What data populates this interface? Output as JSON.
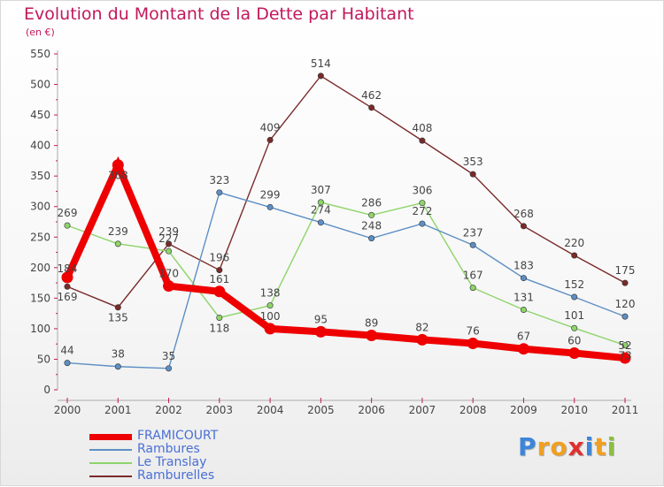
{
  "title": "Evolution du Montant de la Dette par Habitant",
  "subtitle": "(en €)",
  "chart_data": {
    "type": "line",
    "title": "Evolution du Montant de la Dette par Habitant",
    "subtitle": "(en €)",
    "x": [
      "2000",
      "2001",
      "2002",
      "2003",
      "2004",
      "2005",
      "2006",
      "2007",
      "2008",
      "2009",
      "2010",
      "2011"
    ],
    "ylim": [
      0,
      550
    ],
    "yticks": [
      0,
      50,
      100,
      150,
      200,
      250,
      300,
      350,
      400,
      450,
      500,
      550
    ],
    "grid": false,
    "legend_position": "bottom-left",
    "series": [
      {
        "name": "FRAMICOURT",
        "color": "#ee0000",
        "values": [
          184,
          368,
          170,
          161,
          100,
          95,
          89,
          82,
          76,
          67,
          60,
          52
        ]
      },
      {
        "name": "Rambures",
        "color": "#5d8fc4",
        "values": [
          44,
          38,
          35,
          323,
          299,
          274,
          248,
          272,
          237,
          183,
          152,
          120
        ]
      },
      {
        "name": "Le Translay",
        "color": "#8ed46a",
        "values": [
          269,
          239,
          227,
          118,
          138,
          307,
          286,
          306,
          167,
          131,
          101,
          73
        ]
      },
      {
        "name": "Ramburelles",
        "color": "#7a2a2a",
        "values": [
          169,
          135,
          239,
          196,
          409,
          514,
          462,
          408,
          353,
          268,
          220,
          175
        ]
      }
    ]
  },
  "logo": {
    "letters": [
      "P",
      "r",
      "o",
      "x",
      "i",
      "t",
      "i"
    ],
    "colors": [
      "#3d85d8",
      "#f0a020",
      "#f0a020",
      "#e03030",
      "#3d85d8",
      "#f0a020",
      "#8ac040"
    ]
  }
}
